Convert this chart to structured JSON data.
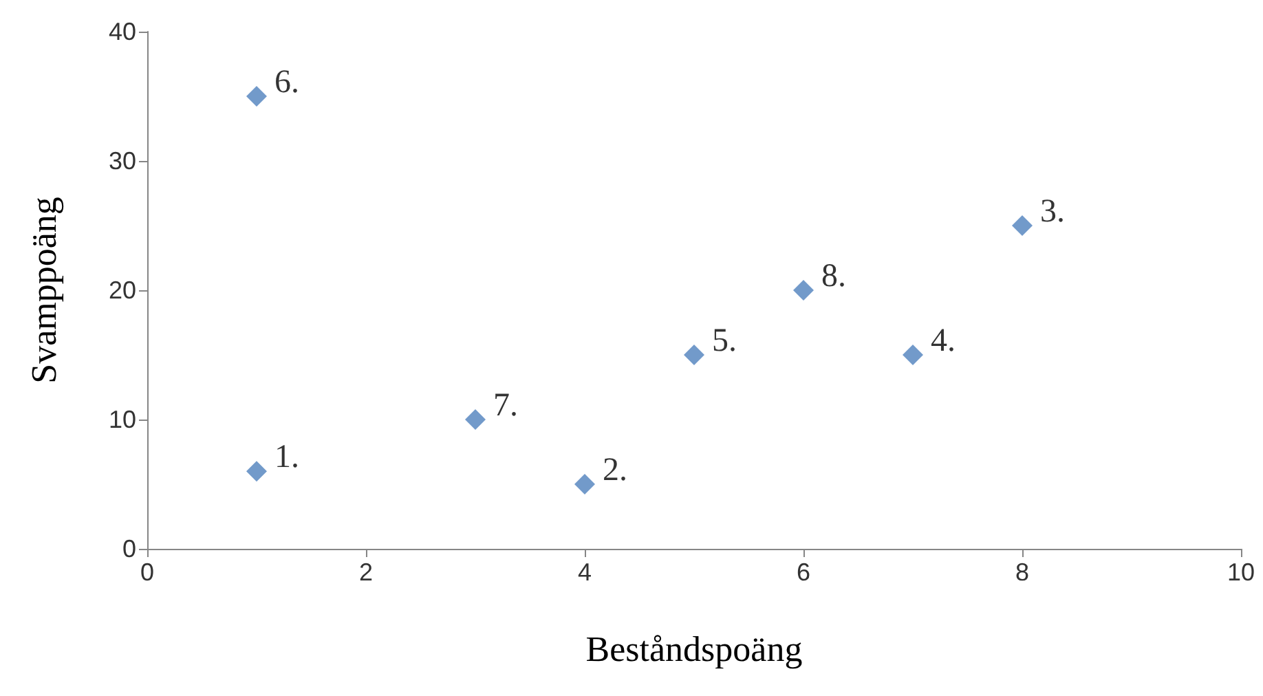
{
  "chart_data": {
    "type": "scatter",
    "xlabel": "Beståndspoäng",
    "ylabel": "Svamppoäng",
    "x": [
      1,
      4,
      8,
      7,
      5,
      1,
      3,
      6
    ],
    "series": [
      {
        "color": "#4f81bd",
        "values": [
          6,
          5,
          25,
          15,
          15,
          35,
          10,
          20
        ]
      }
    ],
    "xlim": [
      0,
      10
    ],
    "xticks": [
      0,
      2,
      4,
      6,
      8,
      10
    ],
    "ylim": [
      0,
      40
    ],
    "yticks": [
      0,
      10,
      20,
      30,
      40
    ],
    "marker": "diamond",
    "annotations": [
      {
        "text": "1.",
        "x": 1,
        "y": 6
      },
      {
        "text": "2.",
        "x": 4,
        "y": 5
      },
      {
        "text": "3.",
        "x": 8,
        "y": 25
      },
      {
        "text": "4.",
        "x": 7,
        "y": 15
      },
      {
        "text": "5.",
        "x": 5,
        "y": 15
      },
      {
        "text": "6.",
        "x": 1,
        "y": 35
      },
      {
        "text": "7.",
        "x": 3,
        "y": 10
      },
      {
        "text": "8.",
        "x": 6,
        "y": 20
      }
    ]
  }
}
